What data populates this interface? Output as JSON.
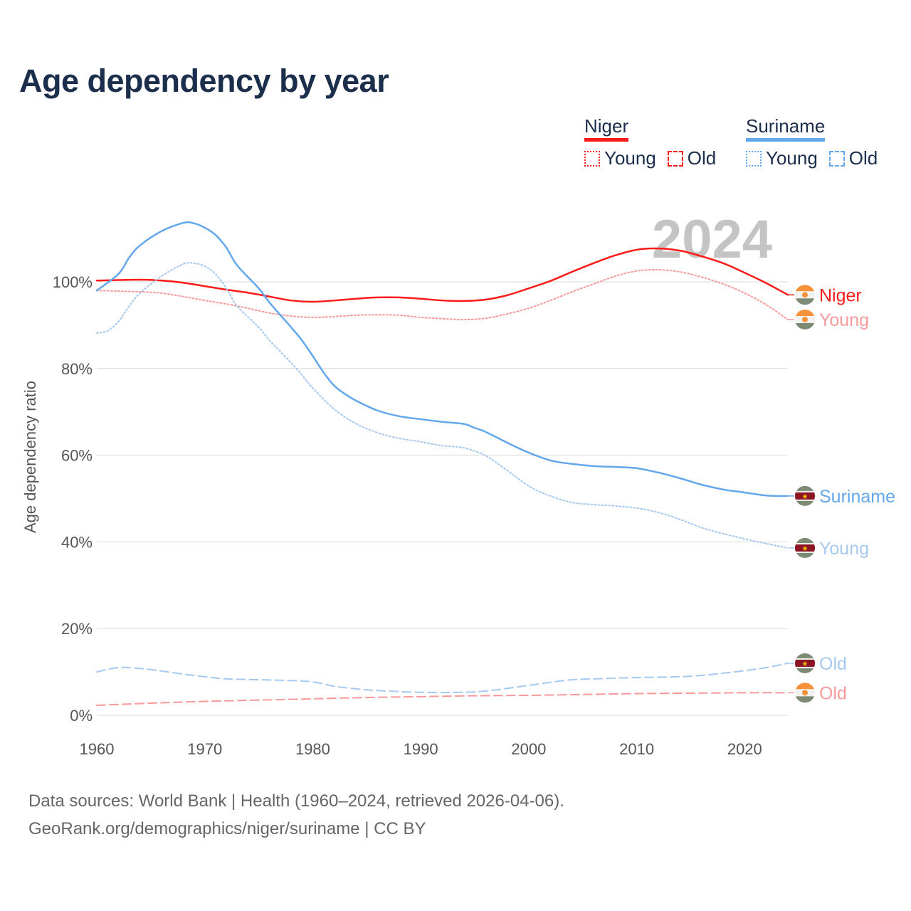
{
  "chart_data": {
    "type": "line",
    "title": "Age dependency by year",
    "ylabel": "Age dependency ratio",
    "xlabel": "",
    "xlim": [
      1960,
      2024
    ],
    "ylim": [
      0,
      115
    ],
    "x_ticks": [
      "1960",
      "1970",
      "1980",
      "1990",
      "2000",
      "2010",
      "2020"
    ],
    "y_ticks": [
      {
        "v": 0,
        "label": "0%"
      },
      {
        "v": 20,
        "label": "20%"
      },
      {
        "v": 40,
        "label": "40%"
      },
      {
        "v": 60,
        "label": "60%"
      },
      {
        "v": 80,
        "label": "80%"
      },
      {
        "v": 100,
        "label": "100%"
      }
    ],
    "grid": true,
    "year_watermark": "2024",
    "legend": {
      "placement": "top-right",
      "groups": [
        {
          "name": "Niger",
          "color": "#ff0000",
          "items": [
            "Young",
            "Old"
          ]
        },
        {
          "name": "Suriname",
          "color": "#63a7ec",
          "items": [
            "Young",
            "Old"
          ]
        }
      ]
    },
    "series": [
      {
        "name": "Niger",
        "end_label": "Niger",
        "country": "niger",
        "color": "#ff1a1a",
        "dash": "solid",
        "points": [
          [
            1960,
            100.3
          ],
          [
            1964,
            100.5
          ],
          [
            1966,
            100.3
          ],
          [
            1968,
            99.8
          ],
          [
            1970,
            99.0
          ],
          [
            1972,
            98.2
          ],
          [
            1974,
            97.5
          ],
          [
            1976,
            96.6
          ],
          [
            1978,
            95.7
          ],
          [
            1980,
            95.4
          ],
          [
            1982,
            95.7
          ],
          [
            1984,
            96.1
          ],
          [
            1986,
            96.4
          ],
          [
            1988,
            96.4
          ],
          [
            1990,
            96.1
          ],
          [
            1992,
            95.7
          ],
          [
            1994,
            95.6
          ],
          [
            1996,
            95.9
          ],
          [
            1998,
            96.9
          ],
          [
            2000,
            98.5
          ],
          [
            2002,
            100.2
          ],
          [
            2004,
            102.3
          ],
          [
            2006,
            104.3
          ],
          [
            2008,
            106.1
          ],
          [
            2010,
            107.4
          ],
          [
            2012,
            107.7
          ],
          [
            2014,
            107.2
          ],
          [
            2016,
            105.9
          ],
          [
            2018,
            104.3
          ],
          [
            2020,
            102.1
          ],
          [
            2022,
            99.7
          ],
          [
            2024,
            97.0
          ]
        ]
      },
      {
        "name": "Niger Young",
        "end_label": "Young",
        "country": "niger",
        "color": "#f99a9a",
        "dash": "dotted",
        "points": [
          [
            1960,
            98.0
          ],
          [
            1964,
            97.7
          ],
          [
            1966,
            97.4
          ],
          [
            1968,
            96.6
          ],
          [
            1970,
            95.7
          ],
          [
            1972,
            94.9
          ],
          [
            1974,
            93.9
          ],
          [
            1976,
            92.8
          ],
          [
            1978,
            92.1
          ],
          [
            1980,
            91.8
          ],
          [
            1982,
            92.0
          ],
          [
            1984,
            92.3
          ],
          [
            1986,
            92.4
          ],
          [
            1988,
            92.3
          ],
          [
            1990,
            91.8
          ],
          [
            1992,
            91.5
          ],
          [
            1994,
            91.3
          ],
          [
            1996,
            91.6
          ],
          [
            1998,
            92.6
          ],
          [
            2000,
            93.9
          ],
          [
            2002,
            95.7
          ],
          [
            2004,
            97.7
          ],
          [
            2006,
            99.5
          ],
          [
            2008,
            101.3
          ],
          [
            2010,
            102.5
          ],
          [
            2012,
            102.8
          ],
          [
            2014,
            102.3
          ],
          [
            2016,
            101.1
          ],
          [
            2018,
            99.5
          ],
          [
            2020,
            97.4
          ],
          [
            2022,
            94.7
          ],
          [
            2024,
            91.3
          ]
        ]
      },
      {
        "name": "Niger Old",
        "end_label": "Old",
        "country": "niger",
        "color": "#f99a9a",
        "dash": "dashed",
        "points": [
          [
            1960,
            2.3
          ],
          [
            1965,
            2.8
          ],
          [
            1970,
            3.2
          ],
          [
            1975,
            3.5
          ],
          [
            1980,
            3.8
          ],
          [
            1985,
            4.1
          ],
          [
            1990,
            4.3
          ],
          [
            1995,
            4.5
          ],
          [
            2000,
            4.6
          ],
          [
            2005,
            4.8
          ],
          [
            2010,
            5.0
          ],
          [
            2015,
            5.1
          ],
          [
            2020,
            5.2
          ],
          [
            2024,
            5.2
          ]
        ]
      },
      {
        "name": "Suriname",
        "end_label": "Suriname",
        "country": "suriname",
        "color": "#63a7ec",
        "dash": "solid",
        "points": [
          [
            1960,
            98.0
          ],
          [
            1962,
            101.8
          ],
          [
            1963,
            105.6
          ],
          [
            1964,
            108.4
          ],
          [
            1966,
            111.7
          ],
          [
            1968,
            113.6
          ],
          [
            1969,
            113.5
          ],
          [
            1970,
            112.5
          ],
          [
            1971,
            110.8
          ],
          [
            1972,
            107.9
          ],
          [
            1973,
            103.8
          ],
          [
            1975,
            98.5
          ],
          [
            1976,
            95.2
          ],
          [
            1978,
            89.5
          ],
          [
            1979,
            86.5
          ],
          [
            1980,
            82.9
          ],
          [
            1981,
            79.1
          ],
          [
            1982,
            76.0
          ],
          [
            1983,
            74.1
          ],
          [
            1984,
            72.6
          ],
          [
            1986,
            70.3
          ],
          [
            1988,
            69.0
          ],
          [
            1990,
            68.3
          ],
          [
            1992,
            67.7
          ],
          [
            1994,
            67.2
          ],
          [
            1995,
            66.3
          ],
          [
            1996,
            65.4
          ],
          [
            1998,
            62.9
          ],
          [
            2000,
            60.6
          ],
          [
            2002,
            58.8
          ],
          [
            2004,
            58.0
          ],
          [
            2006,
            57.5
          ],
          [
            2008,
            57.3
          ],
          [
            2010,
            57.0
          ],
          [
            2012,
            56.0
          ],
          [
            2014,
            54.7
          ],
          [
            2016,
            53.2
          ],
          [
            2018,
            52.1
          ],
          [
            2020,
            51.4
          ],
          [
            2022,
            50.7
          ],
          [
            2024,
            50.6
          ]
        ]
      },
      {
        "name": "Suriname Young",
        "end_label": "Young",
        "country": "suriname",
        "color": "#a6c9f0",
        "dash": "dotted",
        "points": [
          [
            1960,
            88.2
          ],
          [
            1961,
            88.7
          ],
          [
            1962,
            90.8
          ],
          [
            1963,
            94.4
          ],
          [
            1964,
            97.4
          ],
          [
            1966,
            101.3
          ],
          [
            1968,
            104.1
          ],
          [
            1969,
            104.3
          ],
          [
            1970,
            103.6
          ],
          [
            1971,
            101.8
          ],
          [
            1972,
            98.5
          ],
          [
            1973,
            94.4
          ],
          [
            1975,
            89.5
          ],
          [
            1976,
            86.5
          ],
          [
            1978,
            81.3
          ],
          [
            1979,
            78.5
          ],
          [
            1980,
            75.5
          ],
          [
            1982,
            70.6
          ],
          [
            1984,
            67.3
          ],
          [
            1986,
            65.2
          ],
          [
            1988,
            63.9
          ],
          [
            1990,
            63.1
          ],
          [
            1992,
            62.2
          ],
          [
            1994,
            61.7
          ],
          [
            1996,
            59.9
          ],
          [
            1998,
            56.5
          ],
          [
            2000,
            52.9
          ],
          [
            2002,
            50.6
          ],
          [
            2004,
            49.1
          ],
          [
            2006,
            48.6
          ],
          [
            2008,
            48.3
          ],
          [
            2010,
            47.8
          ],
          [
            2012,
            46.8
          ],
          [
            2014,
            45.2
          ],
          [
            2016,
            43.3
          ],
          [
            2018,
            41.9
          ],
          [
            2020,
            40.7
          ],
          [
            2022,
            39.6
          ],
          [
            2024,
            38.6
          ]
        ]
      },
      {
        "name": "Suriname Old",
        "end_label": "Old",
        "country": "suriname",
        "color": "#a6c9f0",
        "dash": "dashed",
        "points": [
          [
            1960,
            10.0
          ],
          [
            1962,
            11.0
          ],
          [
            1964,
            10.8
          ],
          [
            1966,
            10.2
          ],
          [
            1968,
            9.5
          ],
          [
            1970,
            8.9
          ],
          [
            1972,
            8.4
          ],
          [
            1975,
            8.2
          ],
          [
            1978,
            8.0
          ],
          [
            1980,
            7.7
          ],
          [
            1982,
            6.7
          ],
          [
            1984,
            6.1
          ],
          [
            1986,
            5.7
          ],
          [
            1990,
            5.3
          ],
          [
            1994,
            5.3
          ],
          [
            1996,
            5.6
          ],
          [
            1998,
            6.2
          ],
          [
            2000,
            6.9
          ],
          [
            2002,
            7.6
          ],
          [
            2004,
            8.2
          ],
          [
            2006,
            8.4
          ],
          [
            2010,
            8.7
          ],
          [
            2014,
            8.9
          ],
          [
            2016,
            9.2
          ],
          [
            2018,
            9.7
          ],
          [
            2020,
            10.3
          ],
          [
            2022,
            11.0
          ],
          [
            2024,
            12.0
          ]
        ]
      }
    ]
  },
  "footer": {
    "line1": "Data sources: World Bank | Health (1960–2024, retrieved 2026-04-06).",
    "line2": "GeoRank.org/demographics/niger/suriname | CC BY"
  }
}
